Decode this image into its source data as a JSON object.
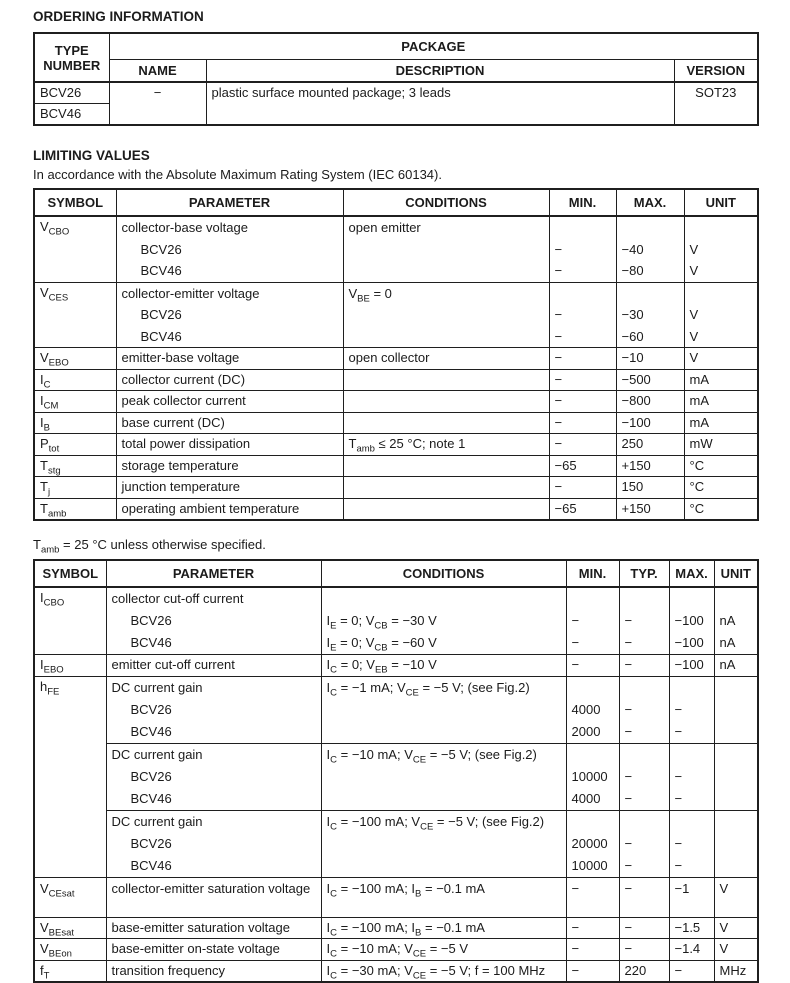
{
  "page": {
    "ink_color": "#1b1b1b",
    "background": "#ffffff"
  },
  "ordering": {
    "title": "ORDERING INFORMATION",
    "col_type": "TYPE NUMBER",
    "package_header": "PACKAGE",
    "cols": {
      "name": "NAME",
      "description": "DESCRIPTION",
      "version": "VERSION"
    },
    "rows": {
      "types": [
        "BCV26",
        "BCV46"
      ],
      "name": "−",
      "description": "plastic surface mounted package; 3 leads",
      "version": "SOT23"
    }
  },
  "limiting": {
    "title": "LIMITING VALUES",
    "intro": "In accordance with the Absolute Maximum Rating System (IEC 60134).",
    "headers": [
      "SYMBOL",
      "PARAMETER",
      "CONDITIONS",
      "MIN.",
      "MAX.",
      "UNIT"
    ],
    "rows": [
      {
        "symbol": "V{CBO}",
        "parameter": "collector-base voltage",
        "conditions": "open emitter",
        "variants": [
          {
            "name": "BCV26",
            "min": "−",
            "max": "−40",
            "unit": "V"
          },
          {
            "name": "BCV46",
            "min": "−",
            "max": "−80",
            "unit": "V"
          }
        ]
      },
      {
        "symbol": "V{CES}",
        "parameter": "collector-emitter voltage",
        "conditions": "V{BE} = 0",
        "variants": [
          {
            "name": "BCV26",
            "min": "−",
            "max": "−30",
            "unit": "V"
          },
          {
            "name": "BCV46",
            "min": "−",
            "max": "−60",
            "unit": "V"
          }
        ]
      },
      {
        "symbol": "V{EBO}",
        "parameter": "emitter-base voltage",
        "conditions": "open collector",
        "min": "−",
        "max": "−10",
        "unit": "V"
      },
      {
        "symbol": "I{C}",
        "parameter": "collector current (DC)",
        "conditions": "",
        "min": "−",
        "max": "−500",
        "unit": "mA"
      },
      {
        "symbol": "I{CM}",
        "parameter": "peak collector current",
        "conditions": "",
        "min": "−",
        "max": "−800",
        "unit": "mA"
      },
      {
        "symbol": "I{B}",
        "parameter": "base current (DC)",
        "conditions": "",
        "min": "−",
        "max": "−100",
        "unit": "mA"
      },
      {
        "symbol": "P{tot}",
        "parameter": "total power dissipation",
        "conditions": "T{amb} ≤ 25 °C; note 1",
        "min": "−",
        "max": "250",
        "unit": "mW"
      },
      {
        "symbol": "T{stg}",
        "parameter": "storage temperature",
        "conditions": "",
        "min": "−65",
        "max": "+150",
        "unit": "°C"
      },
      {
        "symbol": "T{j}",
        "parameter": "junction temperature",
        "conditions": "",
        "min": "−",
        "max": "150",
        "unit": "°C"
      },
      {
        "symbol": "T{amb}",
        "parameter": "operating ambient temperature",
        "conditions": "",
        "min": "−65",
        "max": "+150",
        "unit": "°C"
      }
    ]
  },
  "characteristics": {
    "note": "T{amb} = 25 °C unless otherwise specified.",
    "headers": [
      "SYMBOL",
      "PARAMETER",
      "CONDITIONS",
      "MIN.",
      "TYP.",
      "MAX.",
      "UNIT"
    ],
    "rows": [
      {
        "symbol": "I{CBO}",
        "parameter": "collector cut-off current",
        "variants": [
          {
            "name": "BCV26",
            "conditions": "I{E} = 0; V{CB} = −30 V",
            "min": "−",
            "typ": "−",
            "max": "−100",
            "unit": "nA"
          },
          {
            "name": "BCV46",
            "conditions": "I{E} = 0; V{CB} = −60 V",
            "min": "−",
            "typ": "−",
            "max": "−100",
            "unit": "nA"
          }
        ]
      },
      {
        "symbol": "I{EBO}",
        "parameter": "emitter cut-off current",
        "conditions": "I{C} = 0; V{EB} = −10 V",
        "min": "−",
        "typ": "−",
        "max": "−100",
        "unit": "nA"
      },
      {
        "symbol": "h{FE}",
        "groups": [
          {
            "parameter": "DC current gain",
            "conditions": "I{C} = −1 mA; V{CE} = −5 V; (see Fig.2)",
            "variants": [
              {
                "name": "BCV26",
                "min": "4000",
                "typ": "−",
                "max": "−"
              },
              {
                "name": "BCV46",
                "min": "2000",
                "typ": "−",
                "max": "−"
              }
            ]
          },
          {
            "parameter": "DC current gain",
            "conditions": "I{C} = −10 mA; V{CE} = −5 V; (see Fig.2)",
            "variants": [
              {
                "name": "BCV26",
                "min": "10000",
                "typ": "−",
                "max": "−"
              },
              {
                "name": "BCV46",
                "min": "4000",
                "typ": "−",
                "max": "−"
              }
            ]
          },
          {
            "parameter": "DC current gain",
            "conditions": "I{C} = −100 mA; V{CE} = −5 V; (see Fig.2)",
            "variants": [
              {
                "name": "BCV26",
                "min": "20000",
                "typ": "−",
                "max": "−"
              },
              {
                "name": "BCV46",
                "min": "10000",
                "typ": "−",
                "max": "−"
              }
            ]
          }
        ]
      },
      {
        "symbol": "V{CEsat}",
        "parameter": "collector-emitter saturation voltage",
        "conditions": "I{C} = −100 mA; I{B} = −0.1 mA",
        "min": "−",
        "typ": "−",
        "max": "−1",
        "unit": "V"
      },
      {
        "symbol": "V{BEsat}",
        "parameter": "base-emitter saturation voltage",
        "conditions": "I{C} = −100 mA; I{B} = −0.1 mA",
        "min": "−",
        "typ": "−",
        "max": "−1.5",
        "unit": "V"
      },
      {
        "symbol": "V{BEon}",
        "parameter": "base-emitter on-state voltage",
        "conditions": "I{C} = −10 mA; V{CE} = −5 V",
        "min": "−",
        "typ": "−",
        "max": "−1.4",
        "unit": "V"
      },
      {
        "symbol": "f{T}",
        "parameter": "transition frequency",
        "conditions": "I{C} = −30 mA; V{CE} = −5 V; f = 100 MHz",
        "min": "−",
        "typ": "220",
        "max": "−",
        "unit": "MHz"
      }
    ]
  }
}
